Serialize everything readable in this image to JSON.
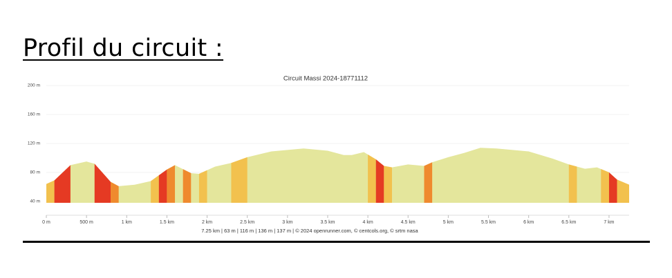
{
  "heading": "Profil du circuit :",
  "chart_data": {
    "type": "area",
    "title": "Circuit Massi 2024-18771112",
    "footer": "7.25 km | 63 m | 116 m | 136 m | 137 m | © 2024 openrunner.com, © centcols.org, © srtm nasa",
    "x": [
      0,
      0.1,
      0.3,
      0.5,
      0.6,
      0.8,
      0.9,
      1.1,
      1.3,
      1.5,
      1.6,
      1.8,
      1.9,
      2.0,
      2.1,
      2.3,
      2.5,
      2.8,
      3.0,
      3.2,
      3.5,
      3.7,
      3.8,
      3.95,
      4.1,
      4.2,
      4.3,
      4.5,
      4.7,
      4.8,
      5.0,
      5.2,
      5.4,
      5.6,
      5.8,
      6.0,
      6.3,
      6.5,
      6.6,
      6.7,
      6.85,
      7.0,
      7.1,
      7.25
    ],
    "values": [
      64,
      69,
      90,
      95,
      92,
      67,
      61,
      63,
      68,
      84,
      90,
      79,
      78,
      83,
      88,
      93,
      101,
      109,
      111,
      113,
      110,
      104,
      104,
      108,
      98,
      89,
      87,
      91,
      89,
      94,
      101,
      107,
      114,
      113,
      111,
      109,
      99,
      91,
      88,
      85,
      87,
      80,
      70,
      63
    ],
    "color": "#e4e69c",
    "segments": [
      {
        "x0": 0,
        "x1": 0.1,
        "color": "#f2c14e"
      },
      {
        "x0": 0.1,
        "x1": 0.3,
        "color": "#e53a23"
      },
      {
        "x0": 0.6,
        "x1": 0.8,
        "color": "#e53a23"
      },
      {
        "x0": 0.8,
        "x1": 0.9,
        "color": "#ef8a2e"
      },
      {
        "x0": 1.3,
        "x1": 1.4,
        "color": "#f2c14e"
      },
      {
        "x0": 1.4,
        "x1": 1.5,
        "color": "#e53a23"
      },
      {
        "x0": 1.5,
        "x1": 1.6,
        "color": "#ef8a2e"
      },
      {
        "x0": 1.7,
        "x1": 1.8,
        "color": "#ef8a2e"
      },
      {
        "x0": 1.9,
        "x1": 2.0,
        "color": "#f2c14e"
      },
      {
        "x0": 2.3,
        "x1": 2.5,
        "color": "#f2c14e"
      },
      {
        "x0": 4.0,
        "x1": 4.1,
        "color": "#f2c14e"
      },
      {
        "x0": 4.1,
        "x1": 4.2,
        "color": "#e53a23"
      },
      {
        "x0": 4.2,
        "x1": 4.3,
        "color": "#f2c14e"
      },
      {
        "x0": 4.7,
        "x1": 4.8,
        "color": "#ef8a2e"
      },
      {
        "x0": 6.5,
        "x1": 6.6,
        "color": "#f2c14e"
      },
      {
        "x0": 6.9,
        "x1": 7.0,
        "color": "#f2c14e"
      },
      {
        "x0": 7.0,
        "x1": 7.1,
        "color": "#e53a23"
      },
      {
        "x0": 7.1,
        "x1": 7.25,
        "color": "#f2c14e"
      }
    ],
    "xlim": [
      0,
      7.25
    ],
    "ylim": [
      38,
      200
    ],
    "xticks": [
      {
        "value": 0,
        "label": "0 m"
      },
      {
        "value": 0.5,
        "label": "500 m"
      },
      {
        "value": 1,
        "label": "1 km"
      },
      {
        "value": 1.5,
        "label": "1.5 km"
      },
      {
        "value": 2,
        "label": "2 km"
      },
      {
        "value": 2.5,
        "label": "2.5 km"
      },
      {
        "value": 3,
        "label": "3 km"
      },
      {
        "value": 3.5,
        "label": "3.5 km"
      },
      {
        "value": 4,
        "label": "4 km"
      },
      {
        "value": 4.5,
        "label": "4.5 km"
      },
      {
        "value": 5,
        "label": "5 km"
      },
      {
        "value": 5.5,
        "label": "5.5 km"
      },
      {
        "value": 6,
        "label": "6 km"
      },
      {
        "value": 6.5,
        "label": "6.5 km"
      },
      {
        "value": 7,
        "label": "7 km"
      }
    ],
    "yticks": [
      {
        "value": 40,
        "label": "40 m"
      },
      {
        "value": 80,
        "label": "80 m"
      },
      {
        "value": 120,
        "label": "120 m"
      },
      {
        "value": 160,
        "label": "160 m"
      },
      {
        "value": 200,
        "label": "200 m"
      }
    ],
    "grid": true
  }
}
